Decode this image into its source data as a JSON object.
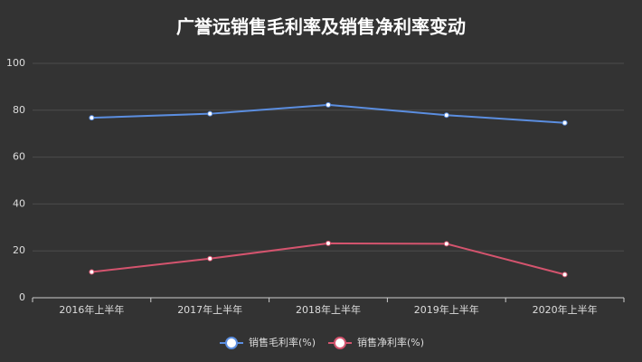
{
  "chart_data": {
    "type": "line",
    "title": "广誉远销售毛利率及销售净利率变动",
    "categories": [
      "2016年上半年",
      "2017年上半年",
      "2018年上半年",
      "2019年上半年",
      "2020年上半年"
    ],
    "series": [
      {
        "name": "销售毛利率(%)",
        "color": "#5b8ee0",
        "values": [
          76.8,
          78.5,
          82.3,
          77.9,
          74.6
        ]
      },
      {
        "name": "销售净利率(%)",
        "color": "#d4546e",
        "values": [
          11.0,
          16.7,
          23.2,
          23.0,
          9.9
        ]
      }
    ],
    "ylim": [
      0,
      100
    ],
    "yticks": [
      0,
      20,
      40,
      60,
      80,
      100
    ],
    "grid": true,
    "legend": "bottom"
  }
}
